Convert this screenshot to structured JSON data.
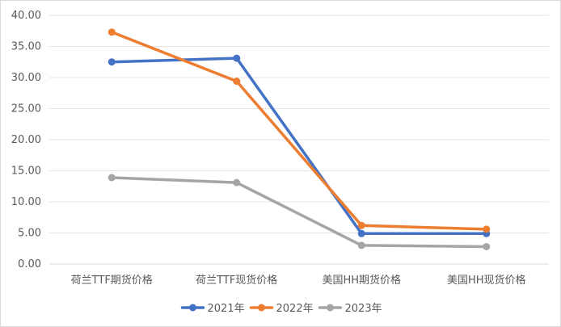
{
  "chart_data": {
    "type": "line",
    "categories": [
      "荷兰TTF期货价格",
      "荷兰TTF现货价格",
      "美国HH期货价格",
      "美国HH现货价格"
    ],
    "series": [
      {
        "name": "2021年",
        "color": "#4472c4",
        "values": [
          32.5,
          33.1,
          4.9,
          4.9
        ]
      },
      {
        "name": "2022年",
        "color": "#ed7d31",
        "values": [
          37.3,
          29.4,
          6.2,
          5.6
        ]
      },
      {
        "name": "2023年",
        "color": "#a5a5a5",
        "values": [
          13.9,
          13.1,
          3.0,
          2.8
        ]
      }
    ],
    "ylim": [
      0,
      40
    ],
    "yticks": [
      "0.00",
      "5.00",
      "10.00",
      "15.00",
      "20.00",
      "25.00",
      "30.00",
      "35.00",
      "40.00"
    ],
    "grid": true,
    "legend_position": "bottom",
    "title": "",
    "xlabel": "",
    "ylabel": ""
  }
}
